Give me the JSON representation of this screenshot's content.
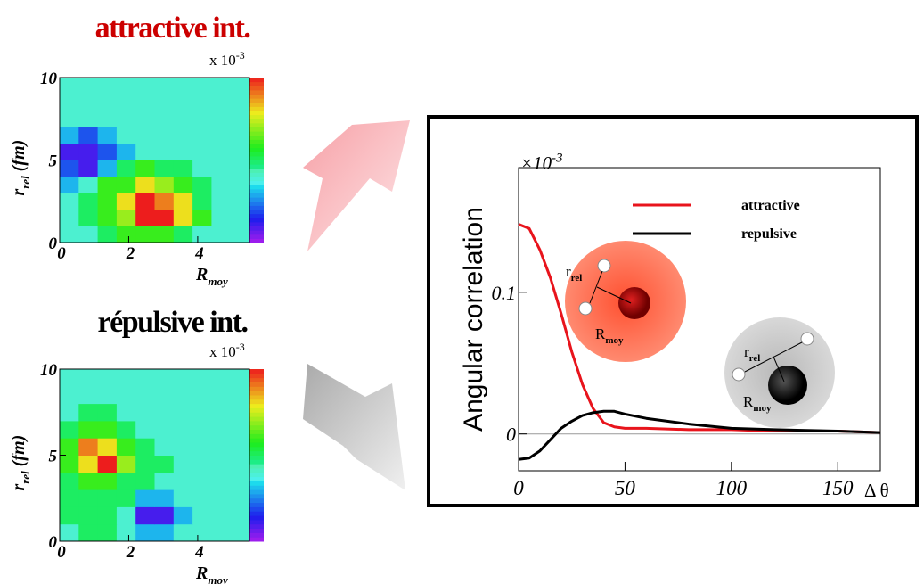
{
  "chart_data": [
    {
      "type": "heatmap",
      "title": "attractive int.",
      "title_color": "#cc0000",
      "exponent": {
        "base": "x 10",
        "exp": "-3"
      },
      "ylabel": {
        "text": "r",
        "sub": "rel",
        "suffix": " (fm)"
      },
      "xlabel": {
        "text": "R",
        "sub": "moy"
      },
      "xlim": [
        0,
        5.5
      ],
      "xticks": [
        0,
        2,
        4
      ],
      "ylim": [
        0,
        10
      ],
      "yticks": [
        0,
        5,
        10
      ],
      "zlim": [
        0,
        10
      ],
      "z": [
        [
          4,
          4,
          5,
          6,
          6,
          6,
          5,
          4,
          4,
          4
        ],
        [
          4,
          5,
          6,
          7,
          10,
          10,
          8,
          6,
          4,
          4
        ],
        [
          4,
          5,
          6,
          8,
          10,
          9,
          8,
          5,
          4,
          4
        ],
        [
          3,
          4,
          6,
          6,
          8,
          7,
          6,
          5,
          4,
          4
        ],
        [
          2,
          1,
          3,
          5,
          6,
          5,
          5,
          4,
          4,
          4
        ],
        [
          1,
          1,
          2,
          3,
          4,
          4,
          4,
          4,
          4,
          4
        ],
        [
          3,
          2,
          3,
          4,
          4,
          4,
          4,
          4,
          4,
          4
        ],
        [
          4,
          4,
          4,
          4,
          4,
          4,
          4,
          4,
          4,
          4
        ],
        [
          4,
          4,
          4,
          4,
          4,
          4,
          4,
          4,
          4,
          4
        ],
        [
          4,
          4,
          4,
          4,
          4,
          4,
          4,
          4,
          4,
          4
        ]
      ]
    },
    {
      "type": "heatmap",
      "title": "répulsive int.",
      "title_color": "#000000",
      "exponent": {
        "base": "x 10",
        "exp": "-3"
      },
      "ylabel": {
        "text": "r",
        "sub": "rel",
        "suffix": " (fm)"
      },
      "xlabel": {
        "text": "R",
        "sub": "moy"
      },
      "xlim": [
        0,
        5.5
      ],
      "xticks": [
        0,
        2,
        4
      ],
      "ylim": [
        0,
        10
      ],
      "yticks": [
        0,
        5,
        10
      ],
      "zlim": [
        0,
        10
      ],
      "z": [
        [
          4,
          5,
          5,
          4,
          3,
          3,
          4,
          4,
          4,
          4
        ],
        [
          5,
          5,
          5,
          4,
          1,
          1,
          3,
          4,
          4,
          4
        ],
        [
          5,
          5,
          5,
          5,
          3,
          3,
          4,
          4,
          4,
          4
        ],
        [
          5,
          6,
          6,
          5,
          5,
          4,
          4,
          4,
          4,
          4
        ],
        [
          6,
          8,
          10,
          7,
          5,
          5,
          4,
          4,
          4,
          4
        ],
        [
          6,
          9,
          8,
          6,
          5,
          4,
          4,
          4,
          4,
          4
        ],
        [
          5,
          6,
          6,
          5,
          4,
          4,
          4,
          4,
          4,
          4
        ],
        [
          4,
          5,
          5,
          4,
          4,
          4,
          4,
          4,
          4,
          4
        ],
        [
          4,
          4,
          4,
          4,
          4,
          4,
          4,
          4,
          4,
          4
        ],
        [
          4,
          4,
          4,
          4,
          4,
          4,
          4,
          4,
          4,
          4
        ]
      ]
    },
    {
      "type": "line",
      "ylabel": "Angular correlation",
      "xlabel": "Δ θ",
      "exponent": {
        "base": "×10",
        "exp": "-3"
      },
      "xlim": [
        0,
        170
      ],
      "xticks": [
        0,
        50,
        100,
        150
      ],
      "ylim": [
        -0.026,
        0.188
      ],
      "yticks": [
        0,
        0.1
      ],
      "x": [
        0,
        5,
        10,
        15,
        20,
        25,
        30,
        35,
        40,
        45,
        50,
        60,
        80,
        100,
        120,
        150,
        170
      ],
      "series": [
        {
          "name": "attractive",
          "color": "#e8141c",
          "values": [
            0.148,
            0.145,
            0.13,
            0.11,
            0.085,
            0.058,
            0.035,
            0.018,
            0.008,
            0.005,
            0.004,
            0.004,
            0.003,
            0.003,
            0.002,
            0.002,
            0.001
          ]
        },
        {
          "name": "repulsive",
          "color": "#000000",
          "values": [
            -0.018,
            -0.017,
            -0.012,
            -0.004,
            0.004,
            0.009,
            0.013,
            0.015,
            0.016,
            0.016,
            0.014,
            0.011,
            0.007,
            0.004,
            0.003,
            0.002,
            0.001
          ]
        }
      ],
      "annotations": [
        {
          "text": "r",
          "sub": "rel"
        },
        {
          "text": "R",
          "sub": "moy"
        },
        {
          "text": "r",
          "sub": "rel"
        },
        {
          "text": "R",
          "sub": "moy"
        }
      ]
    }
  ]
}
